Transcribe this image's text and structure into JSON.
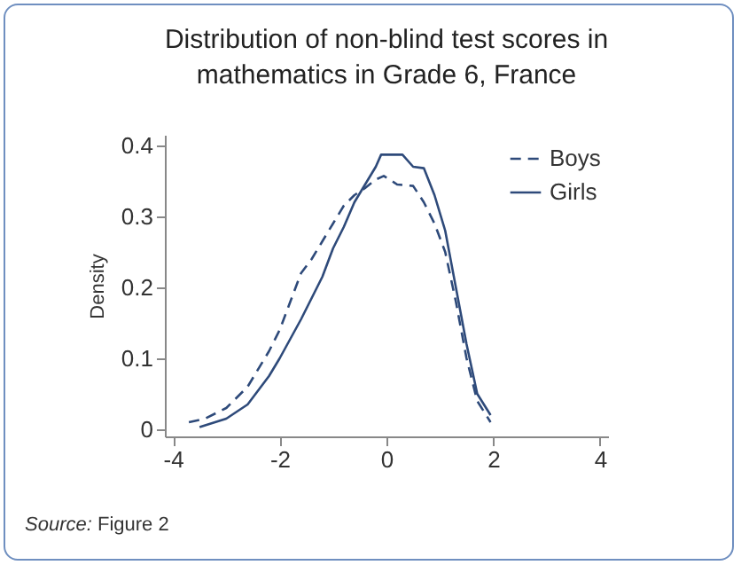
{
  "chart_data": {
    "type": "line",
    "title": "Distribution of non-blind test scores in mathematics in Grade 6, France",
    "ylabel": "Density",
    "annotations": [
      "Source: Figure 2"
    ],
    "xlim": [
      -4.15,
      4.15
    ],
    "xticks": [
      -4,
      -2,
      0,
      2,
      4
    ],
    "ylim": [
      -0.01,
      0.415
    ],
    "yticks": [
      0,
      0.1,
      0.2,
      0.3,
      0.4
    ],
    "grid": false,
    "legend": "top right",
    "series": [
      {
        "name": "Boys",
        "color": "#2e4a7a",
        "line_style": "dashed",
        "x": [
          -3.7,
          -3.4,
          -3,
          -2.6,
          -2.2,
          -2,
          -1.8,
          -1.6,
          -1.4,
          -1.2,
          -1,
          -0.8,
          -0.6,
          -0.4,
          -0.2,
          -0.05,
          0.1,
          0.2,
          0.5,
          0.7,
          0.9,
          1.1,
          1.3,
          1.5,
          1.7,
          1.95
        ],
        "values": [
          0.01,
          0.015,
          0.03,
          0.06,
          0.11,
          0.14,
          0.18,
          0.22,
          0.24,
          0.265,
          0.29,
          0.315,
          0.33,
          0.34,
          0.352,
          0.357,
          0.35,
          0.345,
          0.343,
          0.32,
          0.29,
          0.25,
          0.18,
          0.1,
          0.04,
          0.01
        ]
      },
      {
        "name": "Girls",
        "color": "#2e4a7a",
        "line_style": "solid",
        "x": [
          -3.5,
          -3,
          -2.6,
          -2.2,
          -2,
          -1.6,
          -1.2,
          -1,
          -0.8,
          -0.6,
          -0.4,
          -0.2,
          -0.1,
          0.3,
          0.5,
          0.7,
          0.9,
          1.1,
          1.3,
          1.5,
          1.7,
          1.95
        ],
        "values": [
          0.003,
          0.015,
          0.035,
          0.075,
          0.1,
          0.155,
          0.215,
          0.255,
          0.285,
          0.32,
          0.345,
          0.37,
          0.387,
          0.387,
          0.37,
          0.368,
          0.33,
          0.28,
          0.2,
          0.12,
          0.05,
          0.02
        ]
      }
    ]
  }
}
